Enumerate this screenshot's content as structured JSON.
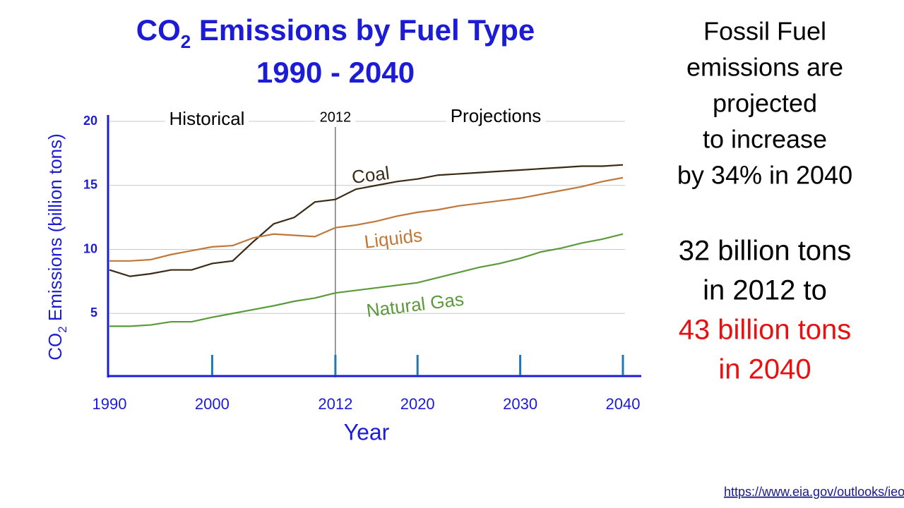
{
  "chart_data": {
    "type": "line",
    "title": {
      "main": "CO",
      "subscript": "2",
      "rest": " Emissions by Fuel Type",
      "line2": "1990 - 2040"
    },
    "y_label": {
      "main": "CO",
      "subscript": "2",
      "rest": "  Emissions (billion tons)"
    },
    "x_label": "Year",
    "x": [
      1990,
      1992,
      1994,
      1996,
      1998,
      2000,
      2002,
      2004,
      2006,
      2008,
      2010,
      2012,
      2014,
      2016,
      2018,
      2020,
      2022,
      2024,
      2026,
      2028,
      2030,
      2032,
      2034,
      2036,
      2038,
      2040
    ],
    "series": [
      {
        "name": "Coal",
        "color": "#3b2b15",
        "values": [
          8.4,
          7.9,
          8.1,
          8.4,
          8.4,
          8.9,
          9.1,
          10.6,
          12.0,
          12.5,
          13.7,
          13.9,
          14.7,
          15.0,
          15.3,
          15.5,
          15.8,
          15.9,
          16.0,
          16.1,
          16.2,
          16.3,
          16.4,
          16.5,
          16.5,
          16.6
        ]
      },
      {
        "name": "Liquids",
        "color": "#c0773a",
        "values": [
          9.1,
          9.1,
          9.2,
          9.6,
          9.9,
          10.2,
          10.3,
          10.9,
          11.2,
          11.1,
          11.0,
          11.7,
          11.9,
          12.2,
          12.6,
          12.9,
          13.1,
          13.4,
          13.6,
          13.8,
          14.0,
          14.3,
          14.6,
          14.9,
          15.3,
          15.6
        ]
      },
      {
        "name": "Natural Gas",
        "color": "#5b9a3b",
        "values": [
          4.0,
          4.0,
          4.1,
          4.35,
          4.35,
          4.7,
          5.0,
          5.3,
          5.6,
          5.95,
          6.2,
          6.6,
          6.8,
          7.0,
          7.2,
          7.4,
          7.8,
          8.2,
          8.6,
          8.9,
          9.3,
          9.8,
          10.1,
          10.5,
          10.8,
          11.2
        ]
      }
    ],
    "xlim": [
      1990,
      2040
    ],
    "ylim": [
      0,
      20
    ],
    "xticks": [
      1990,
      2000,
      2012,
      2020,
      2030,
      2040
    ],
    "yticks": [
      5,
      10,
      15,
      20
    ],
    "grid": true,
    "annotations": {
      "historical": "Historical",
      "divider": {
        "value": 2012,
        "label": "2012"
      },
      "projections": "Projections"
    },
    "side_text": {
      "lines": [
        "Fossil Fuel",
        "emissions are",
        "projected",
        "to increase",
        "by 34% in 2040"
      ],
      "lines2": [
        "32 billion tons",
        "in 2012  to"
      ],
      "highlight": [
        "43 billion tons",
        "in 2040"
      ]
    },
    "source": "https://www.eia.gov/outlooks/ieo/emissions.cfm"
  }
}
